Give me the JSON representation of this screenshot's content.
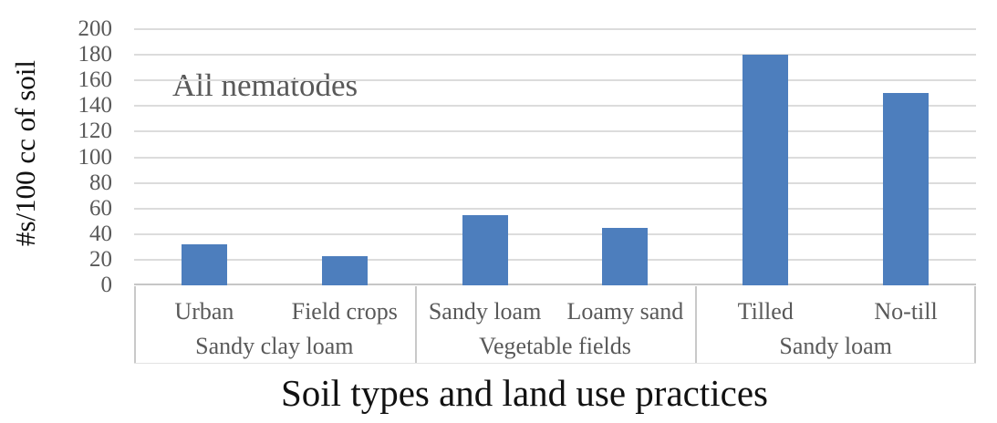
{
  "chart_data": {
    "type": "bar",
    "title": "All nematodes",
    "annotation": "All nematodes",
    "xlabel": "Soil types and land use practices",
    "ylabel": "#s/100 cc of soil",
    "ylim": [
      0,
      200
    ],
    "ytick_interval": 20,
    "yticks": [
      200,
      180,
      160,
      140,
      120,
      100,
      80,
      60,
      40,
      20,
      0
    ],
    "grid": true,
    "legend": false,
    "categories": [
      "Urban",
      "Field crops",
      "Sandy loam",
      "Loamy sand",
      "Tilled",
      "No-till"
    ],
    "values": [
      32,
      23,
      55,
      45,
      180,
      150
    ],
    "series": [
      {
        "name": "All nematodes",
        "values": [
          32,
          23,
          55,
          45,
          180,
          150
        ]
      }
    ],
    "category_groups": [
      {
        "label": "Sandy clay loam",
        "categories": [
          "Urban",
          "Field crops"
        ]
      },
      {
        "label": "Vegetable fields",
        "categories": [
          "Sandy loam",
          "Loamy sand"
        ]
      },
      {
        "label": "Sandy loam",
        "categories": [
          "Tilled",
          "No-till"
        ]
      }
    ],
    "colors": {
      "bar": "#4d7ebd",
      "gridline": "#dcdcdc",
      "axis_line": "#c6c6c6",
      "tick_text": "#595959",
      "category_text": "#595959",
      "annotation_text": "#595959",
      "title_text": "#111111",
      "background": "#ffffff"
    }
  }
}
